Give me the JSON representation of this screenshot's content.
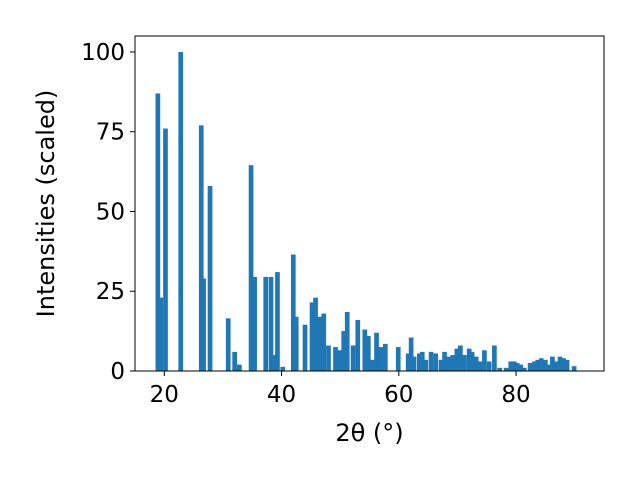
{
  "chart_data": {
    "type": "bar",
    "xlabel": "2θ (°)",
    "ylabel": "Intensities (scaled)",
    "xlim": [
      15,
      95
    ],
    "ylim": [
      0,
      105
    ],
    "x_ticks": [
      20,
      40,
      60,
      80
    ],
    "y_ticks": [
      0,
      25,
      50,
      75,
      100
    ],
    "grid": false,
    "bar_color": "#1f77b4",
    "bar_width": 0.8,
    "x": [
      18.9,
      19.4,
      20.2,
      22.8,
      26.3,
      26.7,
      27.8,
      30.9,
      32.0,
      32.8,
      34.8,
      35.4,
      37.3,
      38.2,
      38.7,
      39.3,
      40.2,
      42.0,
      42.5,
      44.0,
      45.2,
      45.8,
      46.5,
      47.2,
      48.0,
      49.2,
      49.9,
      50.6,
      51.2,
      52.2,
      53.0,
      54.2,
      54.8,
      55.5,
      56.2,
      56.9,
      57.7,
      59.9,
      61.6,
      62.1,
      62.6,
      63.5,
      64.0,
      64.6,
      65.5,
      66.3,
      67.2,
      67.8,
      68.5,
      69.2,
      69.9,
      70.5,
      71.2,
      72.0,
      72.5,
      73.2,
      73.8,
      74.6,
      75.4,
      76.3,
      77.2,
      78.3,
      79.1,
      79.7,
      80.2,
      80.8,
      81.4,
      82.4,
      83.1,
      83.7,
      84.3,
      85.0,
      85.6,
      86.2,
      86.8,
      87.5,
      88.1,
      88.7,
      89.9
    ],
    "values": [
      87,
      23,
      76,
      100,
      77,
      29,
      58,
      16.5,
      6,
      2,
      64.5,
      29.5,
      29.5,
      29.5,
      5,
      31,
      1.3,
      36.5,
      17,
      14.5,
      21.5,
      23,
      17,
      18,
      8,
      7.5,
      6.5,
      12.5,
      18.5,
      8,
      16,
      13,
      11,
      3.5,
      12,
      7.5,
      8.5,
      7.5,
      5.5,
      10.5,
      4.5,
      5.5,
      6,
      3.5,
      6,
      5.5,
      3.5,
      6,
      4.5,
      5,
      7,
      8,
      5,
      7,
      6,
      4.5,
      3,
      6.5,
      3,
      8,
      1,
      1,
      3,
      3,
      2.5,
      2,
      1,
      2.5,
      3,
      3.5,
      4,
      3.5,
      2,
      4.5,
      3,
      4.5,
      4,
      3.5,
      1.5
    ]
  }
}
